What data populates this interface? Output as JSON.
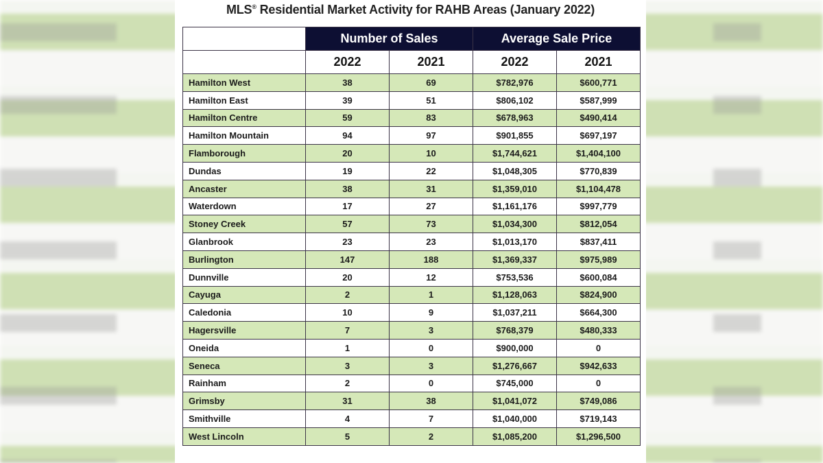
{
  "title": "MLS® Residential Market Activity for RAHB Areas (January 2022)",
  "title_main": "MLS",
  "title_reg": "®",
  "title_rest": " Residential Market Activity for RAHB Areas (January 2022)",
  "colors": {
    "header_bg": "#0d0f33",
    "row_green": "#d5e8b8",
    "row_white": "#ffffff"
  },
  "table": {
    "group_headers": [
      "Number of Sales",
      "Average Sale Price"
    ],
    "year_headers": [
      "2022",
      "2021",
      "2022",
      "2021"
    ],
    "rows": [
      [
        "Hamilton West",
        "38",
        "69",
        "$782,976",
        "$600,771"
      ],
      [
        "Hamilton East",
        "39",
        "51",
        "$806,102",
        "$587,999"
      ],
      [
        "Hamilton Centre",
        "59",
        "83",
        "$678,963",
        "$490,414"
      ],
      [
        "Hamilton Mountain",
        "94",
        "97",
        "$901,855",
        "$697,197"
      ],
      [
        "Flamborough",
        "20",
        "10",
        "$1,744,621",
        "$1,404,100"
      ],
      [
        "Dundas",
        "19",
        "22",
        "$1,048,305",
        "$770,839"
      ],
      [
        "Ancaster",
        "38",
        "31",
        "$1,359,010",
        "$1,104,478"
      ],
      [
        "Waterdown",
        "17",
        "27",
        "$1,161,176",
        "$997,779"
      ],
      [
        "Stoney Creek",
        "57",
        "73",
        "$1,034,300",
        "$812,054"
      ],
      [
        "Glanbrook",
        "23",
        "23",
        "$1,013,170",
        "$837,411"
      ],
      [
        "Burlington",
        "147",
        "188",
        "$1,369,337",
        "$975,989"
      ],
      [
        "Dunnville",
        "20",
        "12",
        "$753,536",
        "$600,084"
      ],
      [
        "Cayuga",
        "2",
        "1",
        "$1,128,063",
        "$824,900"
      ],
      [
        "Caledonia",
        "10",
        "9",
        "$1,037,211",
        "$664,300"
      ],
      [
        "Hagersville",
        "7",
        "3",
        "$768,379",
        "$480,333"
      ],
      [
        "Oneida",
        "1",
        "0",
        "$900,000",
        "0"
      ],
      [
        "Seneca",
        "3",
        "3",
        "$1,276,667",
        "$942,633"
      ],
      [
        "Rainham",
        "2",
        "0",
        "$745,000",
        "0"
      ],
      [
        "Grimsby",
        "31",
        "38",
        "$1,041,072",
        "$749,086"
      ],
      [
        "Smithville",
        "4",
        "7",
        "$1,040,000",
        "$719,143"
      ],
      [
        "West Lincoln",
        "5",
        "2",
        "$1,085,200",
        "$1,296,500"
      ]
    ]
  }
}
